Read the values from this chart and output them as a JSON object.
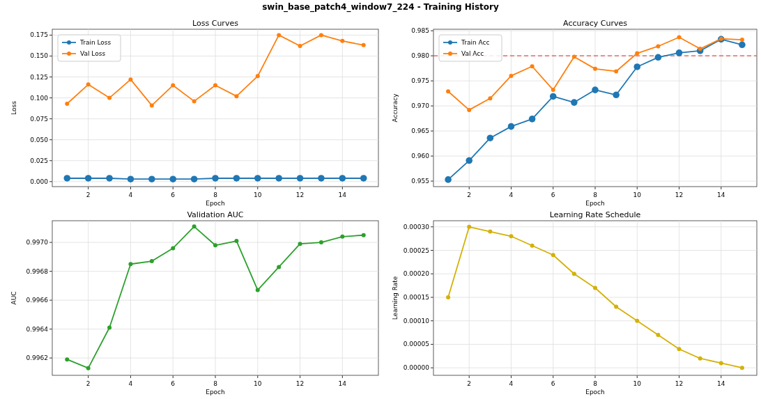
{
  "chart_data": [
    {
      "type": "line",
      "title": "Loss Curves",
      "xlabel": "Epoch",
      "ylabel": "Loss",
      "annotations": [
        "swin_base_patch4_window7_224 - Training History"
      ],
      "x": [
        1,
        2,
        3,
        4,
        5,
        6,
        7,
        8,
        9,
        10,
        11,
        12,
        13,
        14,
        15
      ],
      "xlim": [
        0.3,
        15.7
      ],
      "xticks": [
        2,
        4,
        6,
        8,
        10,
        12,
        14
      ],
      "ylim": [
        -0.006,
        0.182
      ],
      "yticks": [
        {
          "value": 0,
          "label": "0.000"
        },
        {
          "value": 0.025,
          "label": "0.025"
        },
        {
          "value": 0.05,
          "label": "0.050"
        },
        {
          "value": 0.075,
          "label": "0.075"
        },
        {
          "value": 0.1,
          "label": "0.100"
        },
        {
          "value": 0.125,
          "label": "0.125"
        },
        {
          "value": 0.15,
          "label": "0.150"
        },
        {
          "value": 0.175,
          "label": "0.175"
        }
      ],
      "grid": true,
      "legend": "top left",
      "marker": "circle",
      "series": [
        {
          "name": "Train Loss",
          "color": "#1f77b4",
          "values": [
            0.004,
            0.004,
            0.004,
            0.003,
            0.003,
            0.003,
            0.003,
            0.004,
            0.004,
            0.004,
            0.004,
            0.004,
            0.004,
            0.004,
            0.004
          ]
        },
        {
          "name": "Val Loss",
          "color": "#ff7f0e",
          "values": [
            0.093,
            0.116,
            0.1,
            0.122,
            0.091,
            0.115,
            0.096,
            0.115,
            0.102,
            0.126,
            0.175,
            0.162,
            0.175,
            0.168,
            0.163
          ]
        }
      ]
    },
    {
      "type": "line",
      "title": "Accuracy Curves",
      "xlabel": "Epoch",
      "ylabel": "Accuracy",
      "x": [
        1,
        2,
        3,
        4,
        5,
        6,
        7,
        8,
        9,
        10,
        11,
        12,
        13,
        14,
        15
      ],
      "xlim": [
        0.3,
        15.7
      ],
      "xticks": [
        2,
        4,
        6,
        8,
        10,
        12,
        14
      ],
      "ylim": [
        0.9539,
        0.9853
      ],
      "yticks": [
        0.955,
        {
          "value": 0.96,
          "label": "0.960"
        },
        0.965,
        {
          "value": 0.97,
          "label": "0.970"
        },
        0.975,
        {
          "value": 0.98,
          "label": "0.980"
        },
        0.985
      ],
      "grid": true,
      "legend": "top left",
      "marker": "circle",
      "ref_lines": [
        {
          "axis": "y",
          "value": 0.98,
          "color": "#d9534f",
          "line_style": "dashed"
        }
      ],
      "series": [
        {
          "name": "Train Acc",
          "color": "#1f77b4",
          "values": [
            0.9553,
            0.9591,
            0.9636,
            0.9659,
            0.9674,
            0.9719,
            0.9707,
            0.9732,
            0.9722,
            0.9778,
            0.9797,
            0.9806,
            0.981,
            0.9833,
            0.9822
          ]
        },
        {
          "name": "Val Acc",
          "color": "#ff7f0e",
          "values": [
            0.9729,
            0.9692,
            0.9715,
            0.976,
            0.9779,
            0.9732,
            0.9798,
            0.9774,
            0.9769,
            0.9805,
            0.9819,
            0.9837,
            0.9814,
            0.9834,
            0.9832
          ]
        }
      ]
    },
    {
      "type": "line",
      "title": "Validation AUC",
      "xlabel": "Epoch",
      "ylabel": "AUC",
      "x": [
        1,
        2,
        3,
        4,
        5,
        6,
        7,
        8,
        9,
        10,
        11,
        12,
        13,
        14,
        15
      ],
      "xlim": [
        0.3,
        15.7
      ],
      "xticks": [
        2,
        4,
        6,
        8,
        10,
        12,
        14
      ],
      "ylim": [
        0.99608,
        0.99715
      ],
      "yticks": [
        0.9962,
        0.9964,
        0.9966,
        0.9968,
        {
          "value": 0.997,
          "label": "0.9970"
        }
      ],
      "grid": true,
      "marker": "circle",
      "series": [
        {
          "color": "#2ca02c",
          "values": [
            0.99619,
            0.99613,
            0.99641,
            0.99685,
            0.99687,
            0.99696,
            0.99711,
            0.99698,
            0.99701,
            0.99667,
            0.99683,
            0.99699,
            0.997,
            0.99704,
            0.99705
          ]
        }
      ]
    },
    {
      "type": "line",
      "title": "Learning Rate Schedule",
      "xlabel": "Epoch",
      "ylabel": "Learning Rate",
      "x": [
        1,
        2,
        3,
        4,
        5,
        6,
        7,
        8,
        9,
        10,
        11,
        12,
        13,
        14,
        15
      ],
      "xlim": [
        0.3,
        15.7
      ],
      "xticks": [
        2,
        4,
        6,
        8,
        10,
        12,
        14
      ],
      "ylim": [
        -1.6e-05,
        0.000313
      ],
      "yticks": [
        {
          "value": 0,
          "label": "0.00000"
        },
        {
          "value": 5e-05,
          "label": "0.00005"
        },
        {
          "value": 0.0001,
          "label": "0.00010"
        },
        {
          "value": 0.00015,
          "label": "0.00015"
        },
        {
          "value": 0.0002,
          "label": "0.00020"
        },
        {
          "value": 0.00025,
          "label": "0.00025"
        },
        {
          "value": 0.0003,
          "label": "0.00030"
        }
      ],
      "grid": true,
      "marker": "circle",
      "series": [
        {
          "color": "#d4b106",
          "values": [
            0.00015,
            0.0003,
            0.00029,
            0.00028,
            0.00026,
            0.00024,
            0.0002,
            0.00017,
            0.00013,
            0.0001,
            7e-05,
            4e-05,
            2e-05,
            1e-05,
            0
          ]
        }
      ]
    }
  ]
}
